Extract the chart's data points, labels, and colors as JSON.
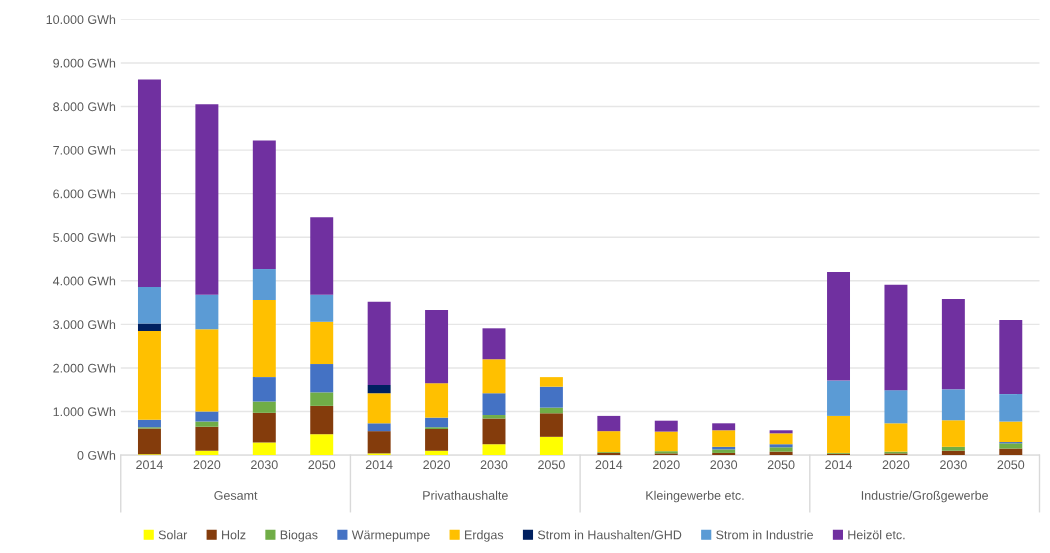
{
  "chart_data": {
    "type": "bar",
    "stacked": true,
    "categories": [
      "2014",
      "2020",
      "2030",
      "2050",
      "2014",
      "2020",
      "2030",
      "2050",
      "2014",
      "2020",
      "2030",
      "2050",
      "2014",
      "2020",
      "2030",
      "2050"
    ],
    "annotations": [
      "Gesamt",
      "Privathaushalte",
      "Kleingewerbe etc.",
      "Industrie/Großgewerbe"
    ],
    "ylim": [
      0,
      10000
    ],
    "yticks": [
      {
        "value": 0,
        "label": "0 GWh"
      },
      {
        "value": 1000,
        "label": "1.000 GWh"
      },
      {
        "value": 2000,
        "label": "2.000 GWh"
      },
      {
        "value": 3000,
        "label": "3.000 GWh"
      },
      {
        "value": 4000,
        "label": "4.000 GWh"
      },
      {
        "value": 5000,
        "label": "5.000 GWh"
      },
      {
        "value": 6000,
        "label": "6.000 GWh"
      },
      {
        "value": 7000,
        "label": "7.000 GWh"
      },
      {
        "value": 8000,
        "label": "8.000 GWh"
      },
      {
        "value": 9000,
        "label": "9.000 GWh"
      },
      {
        "value": 10000,
        "label": "10.000 GWh"
      }
    ],
    "grid": "y",
    "legend": "bottom",
    "series": [
      {
        "name": "Solar",
        "color": "#ffff00",
        "values": [
          20,
          100,
          290,
          480,
          40,
          100,
          250,
          420,
          null,
          null,
          null,
          null,
          null,
          null,
          null,
          null
        ]
      },
      {
        "name": "Holz",
        "color": "#843c0c",
        "values": [
          590,
          550,
          680,
          650,
          510,
          500,
          590,
          540,
          50,
          40,
          50,
          80,
          30,
          40,
          100,
          150
        ]
      },
      {
        "name": "Biogas",
        "color": "#70ad47",
        "values": [
          30,
          120,
          260,
          310,
          null,
          40,
          80,
          130,
          20,
          50,
          80,
          100,
          20,
          40,
          90,
          120
        ]
      },
      {
        "name": "Wärmepumpe",
        "color": "#4472c4",
        "values": [
          170,
          230,
          560,
          650,
          180,
          220,
          500,
          480,
          null,
          null,
          60,
          70,
          null,
          null,
          null,
          30
        ]
      },
      {
        "name": "Erdgas",
        "color": "#ffc000",
        "values": [
          2040,
          1890,
          1770,
          970,
          690,
          790,
          780,
          220,
          480,
          450,
          380,
          250,
          850,
          650,
          610,
          470
        ]
      },
      {
        "name": "Strom in Haushalten/GHD",
        "color": "#002060",
        "values": [
          170,
          null,
          null,
          null,
          190,
          null,
          null,
          null,
          null,
          null,
          null,
          null,
          null,
          null,
          null,
          null
        ]
      },
      {
        "name": "Strom in Industrie",
        "color": "#5b9bd5",
        "values": [
          840,
          790,
          710,
          620,
          null,
          null,
          null,
          null,
          null,
          null,
          null,
          null,
          810,
          760,
          710,
          630
        ]
      },
      {
        "name": "Heizöl etc.",
        "color": "#7030a0",
        "values": [
          4760,
          4370,
          2950,
          1780,
          1910,
          1680,
          710,
          null,
          350,
          250,
          160,
          70,
          2490,
          2420,
          2070,
          1700
        ]
      }
    ]
  }
}
